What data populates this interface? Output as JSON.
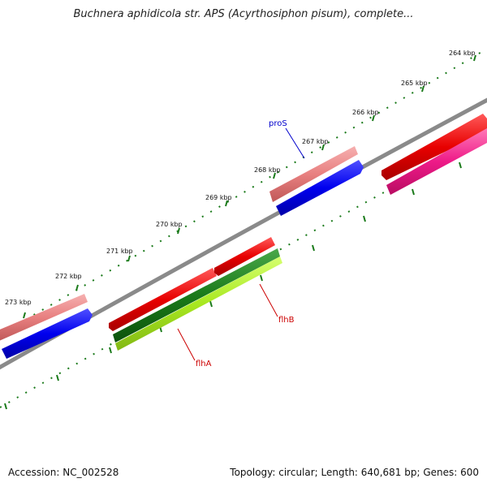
{
  "title": "Buchnera aphidicola str. APS (Acyrthosiphon pisum), complete...",
  "footer": {
    "accession": "Accession: NC_002528",
    "info": "Topology: circular; Length: 640,681 bp; Genes: 600"
  },
  "kbp_labels": [
    "264 kbp",
    "265 kbp",
    "266 kbp",
    "267 kbp",
    "268 kbp",
    "269 kbp",
    "270 kbp",
    "271 kbp",
    "272 kbp",
    "273 kbp"
  ],
  "genes": {
    "pros": "proS",
    "flhb": "flhB",
    "flha": "flhA"
  },
  "colors": {
    "backbone": "#8a8a8a",
    "tick": "#1a7a1a",
    "pink": "#e88080",
    "blue": "#0000ee",
    "red": "#e80000",
    "magenta": "#ee1a88",
    "darkgreen": "#1a7a1a",
    "lime": "#a8e820",
    "label_blue": "#0000cc",
    "label_red": "#cc0000"
  }
}
